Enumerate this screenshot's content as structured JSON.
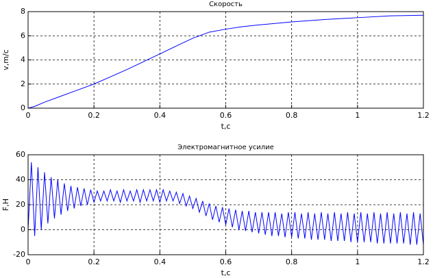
{
  "chart_data": [
    {
      "type": "line",
      "title": "Скорость",
      "x_label": "t,c",
      "y_label": "v,m/c",
      "xlim": [
        0,
        1.2
      ],
      "ylim": [
        0,
        8
      ],
      "xticks": [
        0,
        0.2,
        0.4,
        0.6,
        0.8,
        1,
        1.2
      ],
      "yticks": [
        0,
        2,
        4,
        6,
        8
      ],
      "grid": true,
      "series": [
        {
          "color": "#0000ff",
          "x": [
            0,
            0.02,
            0.05,
            0.1,
            0.15,
            0.2,
            0.25,
            0.3,
            0.35,
            0.4,
            0.45,
            0.5,
            0.55,
            0.6,
            0.65,
            0.7,
            0.8,
            0.9,
            1.0,
            1.1,
            1.2
          ],
          "values": [
            0,
            0.15,
            0.5,
            1.0,
            1.5,
            2.0,
            2.6,
            3.2,
            3.85,
            4.5,
            5.15,
            5.8,
            6.3,
            6.55,
            6.75,
            6.9,
            7.15,
            7.35,
            7.5,
            7.65,
            7.7
          ]
        }
      ]
    },
    {
      "type": "line",
      "title": "Электромагнитное усилие",
      "x_label": "t,c",
      "y_label": "F,H",
      "xlim": [
        0,
        1.2
      ],
      "ylim": [
        -20,
        60
      ],
      "xticks": [
        0,
        0.2,
        0.4,
        0.6,
        0.8,
        1,
        1.2
      ],
      "yticks": [
        -20,
        0,
        20,
        40,
        60
      ],
      "grid": true,
      "series": [
        {
          "color": "#0000ff",
          "x": [
            0,
            0.01,
            0.02,
            0.03,
            0.04,
            0.05,
            0.06,
            0.07,
            0.08,
            0.09,
            0.1,
            0.11,
            0.12,
            0.13,
            0.14,
            0.15,
            0.16,
            0.17,
            0.18,
            0.19,
            0.2,
            0.21,
            0.22,
            0.23,
            0.24,
            0.25,
            0.26,
            0.27,
            0.28,
            0.29,
            0.3,
            0.31,
            0.32,
            0.33,
            0.34,
            0.35,
            0.36,
            0.37,
            0.38,
            0.39,
            0.4,
            0.41,
            0.42,
            0.43,
            0.44,
            0.45,
            0.46,
            0.47,
            0.48,
            0.49,
            0.5,
            0.51,
            0.52,
            0.53,
            0.54,
            0.55,
            0.56,
            0.57,
            0.58,
            0.59,
            0.6,
            0.61,
            0.62,
            0.63,
            0.64,
            0.65,
            0.66,
            0.67,
            0.68,
            0.69,
            0.7,
            0.71,
            0.72,
            0.73,
            0.74,
            0.75,
            0.76,
            0.77,
            0.78,
            0.79,
            0.8,
            0.81,
            0.82,
            0.83,
            0.84,
            0.85,
            0.86,
            0.87,
            0.88,
            0.89,
            0.9,
            0.91,
            0.92,
            0.93,
            0.94,
            0.95,
            0.96,
            0.97,
            0.98,
            0.99,
            1.0,
            1.01,
            1.02,
            1.03,
            1.04,
            1.05,
            1.06,
            1.07,
            1.08,
            1.09,
            1.1,
            1.11,
            1.12,
            1.13,
            1.14,
            1.15,
            1.16,
            1.17,
            1.18,
            1.19,
            1.2
          ],
          "values": [
            0,
            54,
            -5,
            50,
            0,
            46,
            5,
            42,
            9,
            40,
            12,
            37,
            15,
            35,
            17,
            34,
            19,
            33,
            20,
            32,
            22,
            31,
            23,
            31,
            23,
            32,
            23,
            31,
            22,
            32,
            23,
            31,
            23,
            32,
            22,
            32,
            23,
            32,
            23,
            32,
            22,
            32,
            23,
            31,
            23,
            30,
            21,
            29,
            19,
            27,
            17,
            25,
            14,
            23,
            11,
            21,
            8,
            19,
            6,
            18,
            4,
            17,
            2,
            16,
            0,
            15,
            -1,
            15,
            -2,
            14,
            -3,
            14,
            -4,
            14,
            -5,
            14,
            -5,
            13,
            -6,
            14,
            -6,
            14,
            -7,
            13,
            -7,
            14,
            -8,
            13,
            -8,
            14,
            -8,
            13,
            -9,
            14,
            -9,
            13,
            -9,
            14,
            -10,
            13,
            -10,
            14,
            -10,
            13,
            -10,
            14,
            -11,
            13,
            -11,
            14,
            -11,
            13,
            -11,
            14,
            -11,
            13,
            -12,
            14,
            -12,
            13,
            -12
          ]
        }
      ]
    }
  ]
}
